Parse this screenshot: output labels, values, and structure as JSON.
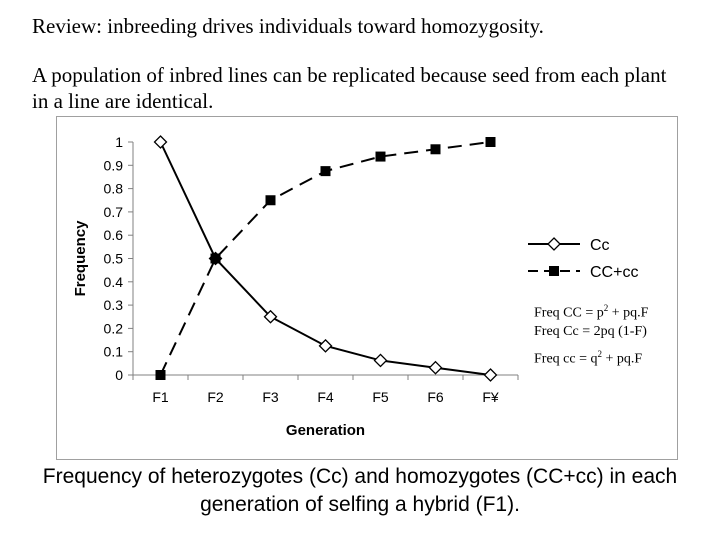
{
  "heading": "Review:  inbreeding drives individuals toward homozygosity.",
  "intro": "A population of inbred lines can be replicated because seed from each plant in a line are identical.",
  "caption": "Frequency of heterozygotes (Cc) and homozygotes (CC+cc) in each generation of selfing a hybrid (F1).",
  "formulas": [
    {
      "left": "Freq CC =  p",
      "sup": "2",
      "right": " + pq.F"
    },
    {
      "left": "Freq Cc  = 2pq (1-F)",
      "sup": "",
      "right": ""
    },
    {
      "left": "Freq cc    = q",
      "sup": "2",
      "right": " + pq.F"
    }
  ],
  "chart_data": {
    "type": "line",
    "xlabel": "Generation",
    "ylabel": "Frequency",
    "categories": [
      "F1",
      "F2",
      "F3",
      "F4",
      "F5",
      "F6",
      "F¥"
    ],
    "ylim": [
      0,
      1
    ],
    "yticks": [
      "0",
      "0.1",
      "0.2",
      "0.3",
      "0.4",
      "0.5",
      "0.6",
      "0.7",
      "0.8",
      "0.9",
      "1"
    ],
    "grid": false,
    "legend_position": "right",
    "series": [
      {
        "name": "Cc",
        "values": [
          1,
          0.5,
          0.25,
          0.125,
          0.0625,
          0.03125,
          0
        ],
        "marker": "diamond-open",
        "line": "solid",
        "color": "#000000"
      },
      {
        "name": "CC+cc",
        "values": [
          0,
          0.5,
          0.75,
          0.875,
          0.9375,
          0.96875,
          1
        ],
        "marker": "square-filled",
        "line": "dashed",
        "color": "#000000"
      }
    ]
  }
}
